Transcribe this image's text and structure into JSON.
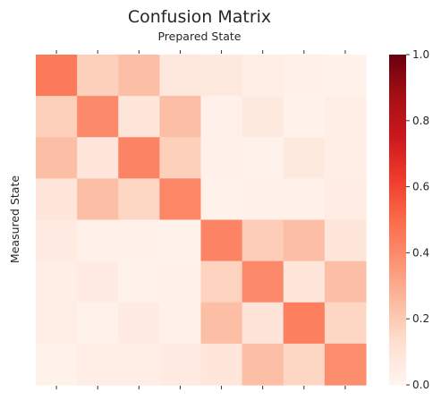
{
  "chart_data": {
    "type": "heatmap",
    "title": "Confusion Matrix",
    "xlabel": "Prepared State",
    "ylabel": "Measured State",
    "rows": 8,
    "cols": 8,
    "values": [
      [
        0.45,
        0.18,
        0.24,
        0.08,
        0.07,
        0.04,
        0.03,
        0.02
      ],
      [
        0.18,
        0.4,
        0.09,
        0.24,
        0.03,
        0.07,
        0.02,
        0.04
      ],
      [
        0.24,
        0.09,
        0.42,
        0.18,
        0.03,
        0.02,
        0.07,
        0.04
      ],
      [
        0.09,
        0.24,
        0.16,
        0.41,
        0.02,
        0.03,
        0.03,
        0.05
      ],
      [
        0.06,
        0.03,
        0.03,
        0.02,
        0.42,
        0.19,
        0.24,
        0.09
      ],
      [
        0.04,
        0.06,
        0.02,
        0.03,
        0.17,
        0.4,
        0.09,
        0.24
      ],
      [
        0.04,
        0.02,
        0.06,
        0.03,
        0.24,
        0.1,
        0.43,
        0.16
      ],
      [
        0.02,
        0.04,
        0.04,
        0.06,
        0.09,
        0.24,
        0.16,
        0.39
      ]
    ],
    "colorbar": {
      "min": 0.0,
      "max": 1.0,
      "ticks": [
        "0.0",
        "0.2",
        "0.4",
        "0.6",
        "0.8",
        "1.0"
      ],
      "colormap": "Reds"
    },
    "x_tick_labels": [],
    "y_tick_labels": [],
    "grid": false
  },
  "colors": {
    "text": "#262626",
    "tick": "#333333"
  }
}
